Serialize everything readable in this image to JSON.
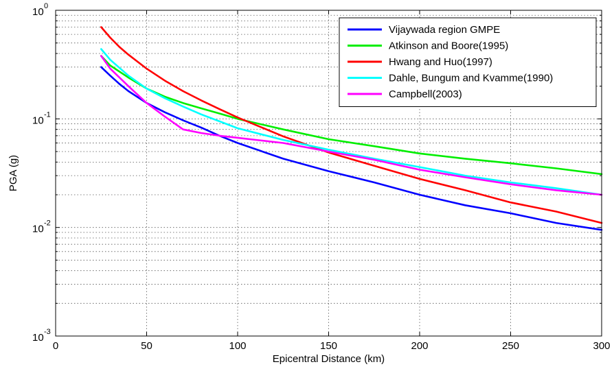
{
  "chart_data": {
    "type": "line",
    "xlabel": "Epicentral Distance (km)",
    "ylabel": "PGA (g)",
    "xlim": [
      0,
      300
    ],
    "ylim": [
      0.001,
      1
    ],
    "yscale": "log",
    "xticks": [
      0,
      50,
      100,
      150,
      200,
      250,
      300
    ],
    "yticks": [
      {
        "value": 0.001,
        "base": "10",
        "exp": "-3"
      },
      {
        "value": 0.01,
        "base": "10",
        "exp": "-2"
      },
      {
        "value": 0.1,
        "base": "10",
        "exp": "-1"
      },
      {
        "value": 1,
        "base": "10",
        "exp": "0"
      }
    ],
    "grid": true,
    "legend_position": "top-right",
    "series": [
      {
        "name": "Vijaywada region GMPE",
        "color": "#0000ff",
        "x": [
          25,
          30,
          35,
          40,
          50,
          60,
          70,
          80,
          90,
          100,
          125,
          150,
          175,
          200,
          225,
          250,
          275,
          300
        ],
        "values": [
          0.3,
          0.25,
          0.21,
          0.18,
          0.14,
          0.115,
          0.097,
          0.083,
          0.07,
          0.06,
          0.043,
          0.033,
          0.026,
          0.02,
          0.016,
          0.0135,
          0.011,
          0.0095
        ]
      },
      {
        "name": "Atkinson and Boore(1995)",
        "color": "#00ee00",
        "x": [
          25,
          30,
          40,
          50,
          60,
          70,
          80,
          90,
          100,
          125,
          150,
          175,
          200,
          225,
          250,
          275,
          300
        ],
        "values": [
          0.38,
          0.31,
          0.24,
          0.19,
          0.16,
          0.14,
          0.125,
          0.112,
          0.1,
          0.08,
          0.065,
          0.056,
          0.048,
          0.043,
          0.039,
          0.035,
          0.031
        ]
      },
      {
        "name": "Hwang and Huo(1997)",
        "color": "#ff0000",
        "x": [
          25,
          30,
          35,
          40,
          50,
          60,
          70,
          80,
          90,
          100,
          125,
          150,
          175,
          200,
          225,
          250,
          275,
          300
        ],
        "values": [
          0.7,
          0.56,
          0.46,
          0.39,
          0.29,
          0.225,
          0.18,
          0.148,
          0.123,
          0.103,
          0.069,
          0.049,
          0.037,
          0.028,
          0.022,
          0.017,
          0.014,
          0.011
        ]
      },
      {
        "name": "Dahle, Bungum and Kvamme(1990)",
        "color": "#00ffff",
        "x": [
          25,
          30,
          40,
          50,
          60,
          70,
          80,
          90,
          100,
          125,
          150,
          175,
          200,
          225,
          250,
          275,
          300
        ],
        "values": [
          0.44,
          0.35,
          0.25,
          0.19,
          0.155,
          0.13,
          0.11,
          0.095,
          0.082,
          0.064,
          0.052,
          0.043,
          0.036,
          0.03,
          0.026,
          0.023,
          0.02
        ]
      },
      {
        "name": "Campbell(2003)",
        "color": "#ff00ff",
        "x": [
          25,
          30,
          40,
          50,
          60,
          70,
          80,
          90,
          100,
          110,
          125,
          150,
          175,
          200,
          225,
          250,
          275,
          300
        ],
        "values": [
          0.38,
          0.29,
          0.2,
          0.14,
          0.105,
          0.08,
          0.074,
          0.07,
          0.067,
          0.064,
          0.06,
          0.05,
          0.042,
          0.034,
          0.029,
          0.025,
          0.022,
          0.02
        ]
      }
    ]
  }
}
